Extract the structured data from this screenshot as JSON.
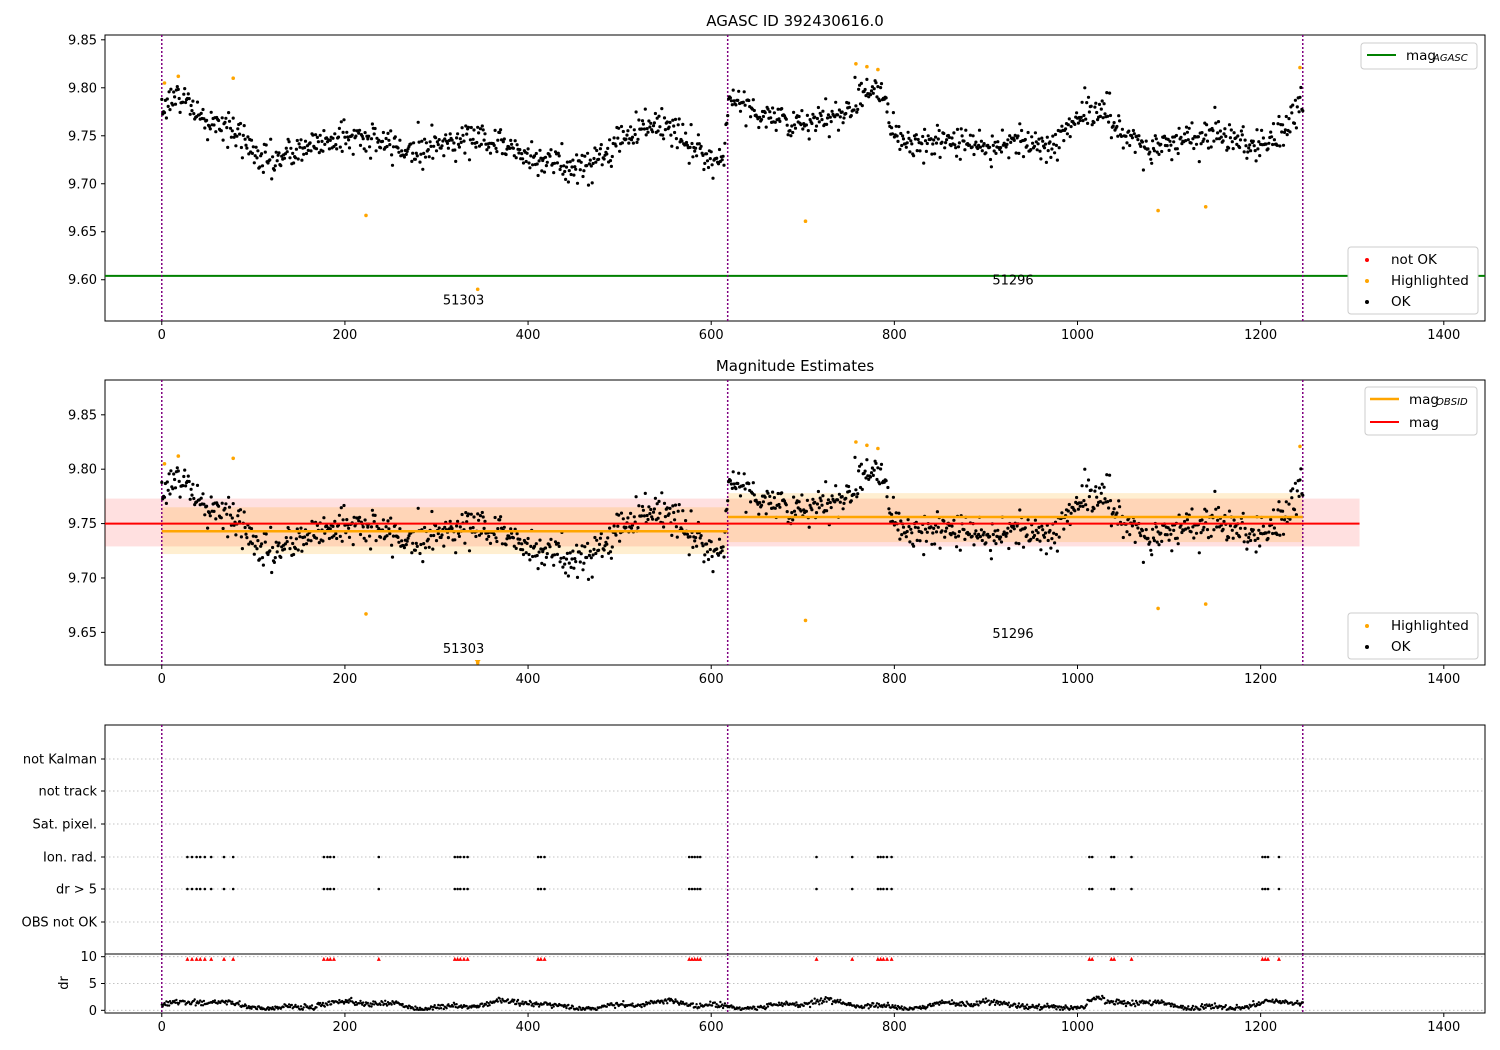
{
  "chart_data": [
    {
      "id": "agasc",
      "type": "scatter",
      "title": "AGASC ID 392430616.0",
      "xlim": [
        -62,
        1445
      ],
      "ylim": [
        9.557,
        9.855
      ],
      "xticks": [
        0,
        200,
        400,
        600,
        800,
        1000,
        1200,
        1400
      ],
      "yticks": [
        9.6,
        9.65,
        9.7,
        9.75,
        9.8,
        9.85
      ],
      "ytick_labels": [
        "9.60",
        "9.65",
        "9.70",
        "9.75",
        "9.80",
        "9.85"
      ],
      "vlines": [
        0,
        618,
        1246
      ],
      "obsid_labels": [
        {
          "x": 307,
          "y": 9.574,
          "text": "51303"
        },
        {
          "x": 907,
          "y": 9.595,
          "text": "51296"
        }
      ],
      "mag_agasc": 9.604,
      "legend_upper": {
        "position": "top-right",
        "entries": [
          {
            "label": "mag",
            "sub": "AGASC",
            "color": "#008000"
          }
        ]
      },
      "legend_lower": {
        "position": "bottom-right",
        "entries": [
          {
            "label": "not OK",
            "color": "#ff0000"
          },
          {
            "label": "Highlighted",
            "color": "#ffa500"
          },
          {
            "label": "OK",
            "color": "#000000"
          }
        ]
      },
      "highlighted": [
        [
          3,
          9.805
        ],
        [
          18,
          9.812
        ],
        [
          78,
          9.81
        ],
        [
          223,
          9.667
        ],
        [
          345,
          9.59
        ],
        [
          703,
          9.661
        ],
        [
          758,
          9.825
        ],
        [
          770,
          9.822
        ],
        [
          782,
          9.819
        ],
        [
          1088,
          9.672
        ],
        [
          1140,
          9.676
        ],
        [
          1243,
          9.821
        ]
      ]
    },
    {
      "id": "estimates",
      "type": "scatter",
      "title": "Magnitude Estimates",
      "xlim": [
        -62,
        1445
      ],
      "ylim": [
        9.62,
        9.882
      ],
      "xticks": [
        0,
        200,
        400,
        600,
        800,
        1000,
        1200,
        1400
      ],
      "yticks": [
        9.65,
        9.7,
        9.75,
        9.8,
        9.85
      ],
      "ytick_labels": [
        "9.65",
        "9.70",
        "9.75",
        "9.80",
        "9.85"
      ],
      "vlines": [
        0,
        618,
        1246
      ],
      "obsid_labels": [
        {
          "x": 307,
          "y": 9.631,
          "text": "51303"
        },
        {
          "x": 907,
          "y": 9.645,
          "text": "51296"
        }
      ],
      "mag": {
        "value": 9.75,
        "band": [
          9.729,
          9.773
        ],
        "x_range": [
          -62,
          1308
        ]
      },
      "mag_obsid": [
        {
          "x_range": [
            0,
            618
          ],
          "value": 9.743,
          "band": [
            9.722,
            9.765
          ]
        },
        {
          "x_range": [
            618,
            1246
          ],
          "value": 9.756,
          "band": [
            9.733,
            9.778
          ]
        }
      ],
      "legend_upper": {
        "position": "top-right",
        "entries": [
          {
            "label": "mag",
            "sub": "OBSID",
            "color": "#ffa500"
          },
          {
            "label": "mag",
            "color": "#ff0000"
          }
        ]
      },
      "legend_lower": {
        "position": "bottom-right",
        "entries": [
          {
            "label": "Highlighted",
            "color": "#ffa500"
          },
          {
            "label": "OK",
            "color": "#000000"
          }
        ]
      },
      "highlighted": [
        [
          3,
          9.805
        ],
        [
          18,
          9.812
        ],
        [
          78,
          9.81
        ],
        [
          223,
          9.667
        ],
        [
          345,
          9.622
        ],
        [
          703,
          9.661
        ],
        [
          758,
          9.825
        ],
        [
          770,
          9.822
        ],
        [
          782,
          9.819
        ],
        [
          1088,
          9.672
        ],
        [
          1140,
          9.676
        ],
        [
          1243,
          9.821
        ]
      ]
    },
    {
      "id": "flags",
      "type": "scatter",
      "xlim": [
        -62,
        1445
      ],
      "categories": [
        "not Kalman",
        "not track",
        "Sat. pixel.",
        "Ion. rad.",
        "dr > 5",
        "OBS not OK"
      ],
      "vlines": [
        0,
        618,
        1246
      ],
      "flag_rows": {
        "Ion. rad.": [
          28,
          33,
          38,
          42,
          47,
          54,
          68,
          78,
          177,
          181,
          184,
          188,
          237,
          320,
          323,
          326,
          330,
          334,
          411,
          414,
          418,
          576,
          579,
          582,
          585,
          588,
          715,
          754,
          782,
          785,
          788,
          792,
          797,
          1013,
          1016,
          1037,
          1040,
          1059,
          1202,
          1205,
          1208,
          1220
        ],
        "dr > 5": [
          28,
          33,
          38,
          42,
          47,
          54,
          68,
          78,
          177,
          181,
          184,
          188,
          237,
          320,
          323,
          326,
          330,
          334,
          411,
          414,
          418,
          576,
          579,
          582,
          585,
          588,
          715,
          754,
          782,
          785,
          788,
          792,
          797,
          1013,
          1016,
          1037,
          1040,
          1059,
          1202,
          1205,
          1208,
          1220
        ]
      }
    },
    {
      "id": "dr",
      "type": "scatter",
      "ylabel": "dr",
      "xlim": [
        -62,
        1445
      ],
      "ylim": [
        -0.5,
        10.5
      ],
      "xticks": [
        0,
        200,
        400,
        600,
        800,
        1000,
        1200,
        1400
      ],
      "yticks": [
        0,
        5,
        10
      ],
      "ytick_labels": [
        "0",
        "5",
        "10"
      ],
      "vlines": [
        0,
        618,
        1246
      ],
      "clipped_marker_y": 9.6
    }
  ]
}
